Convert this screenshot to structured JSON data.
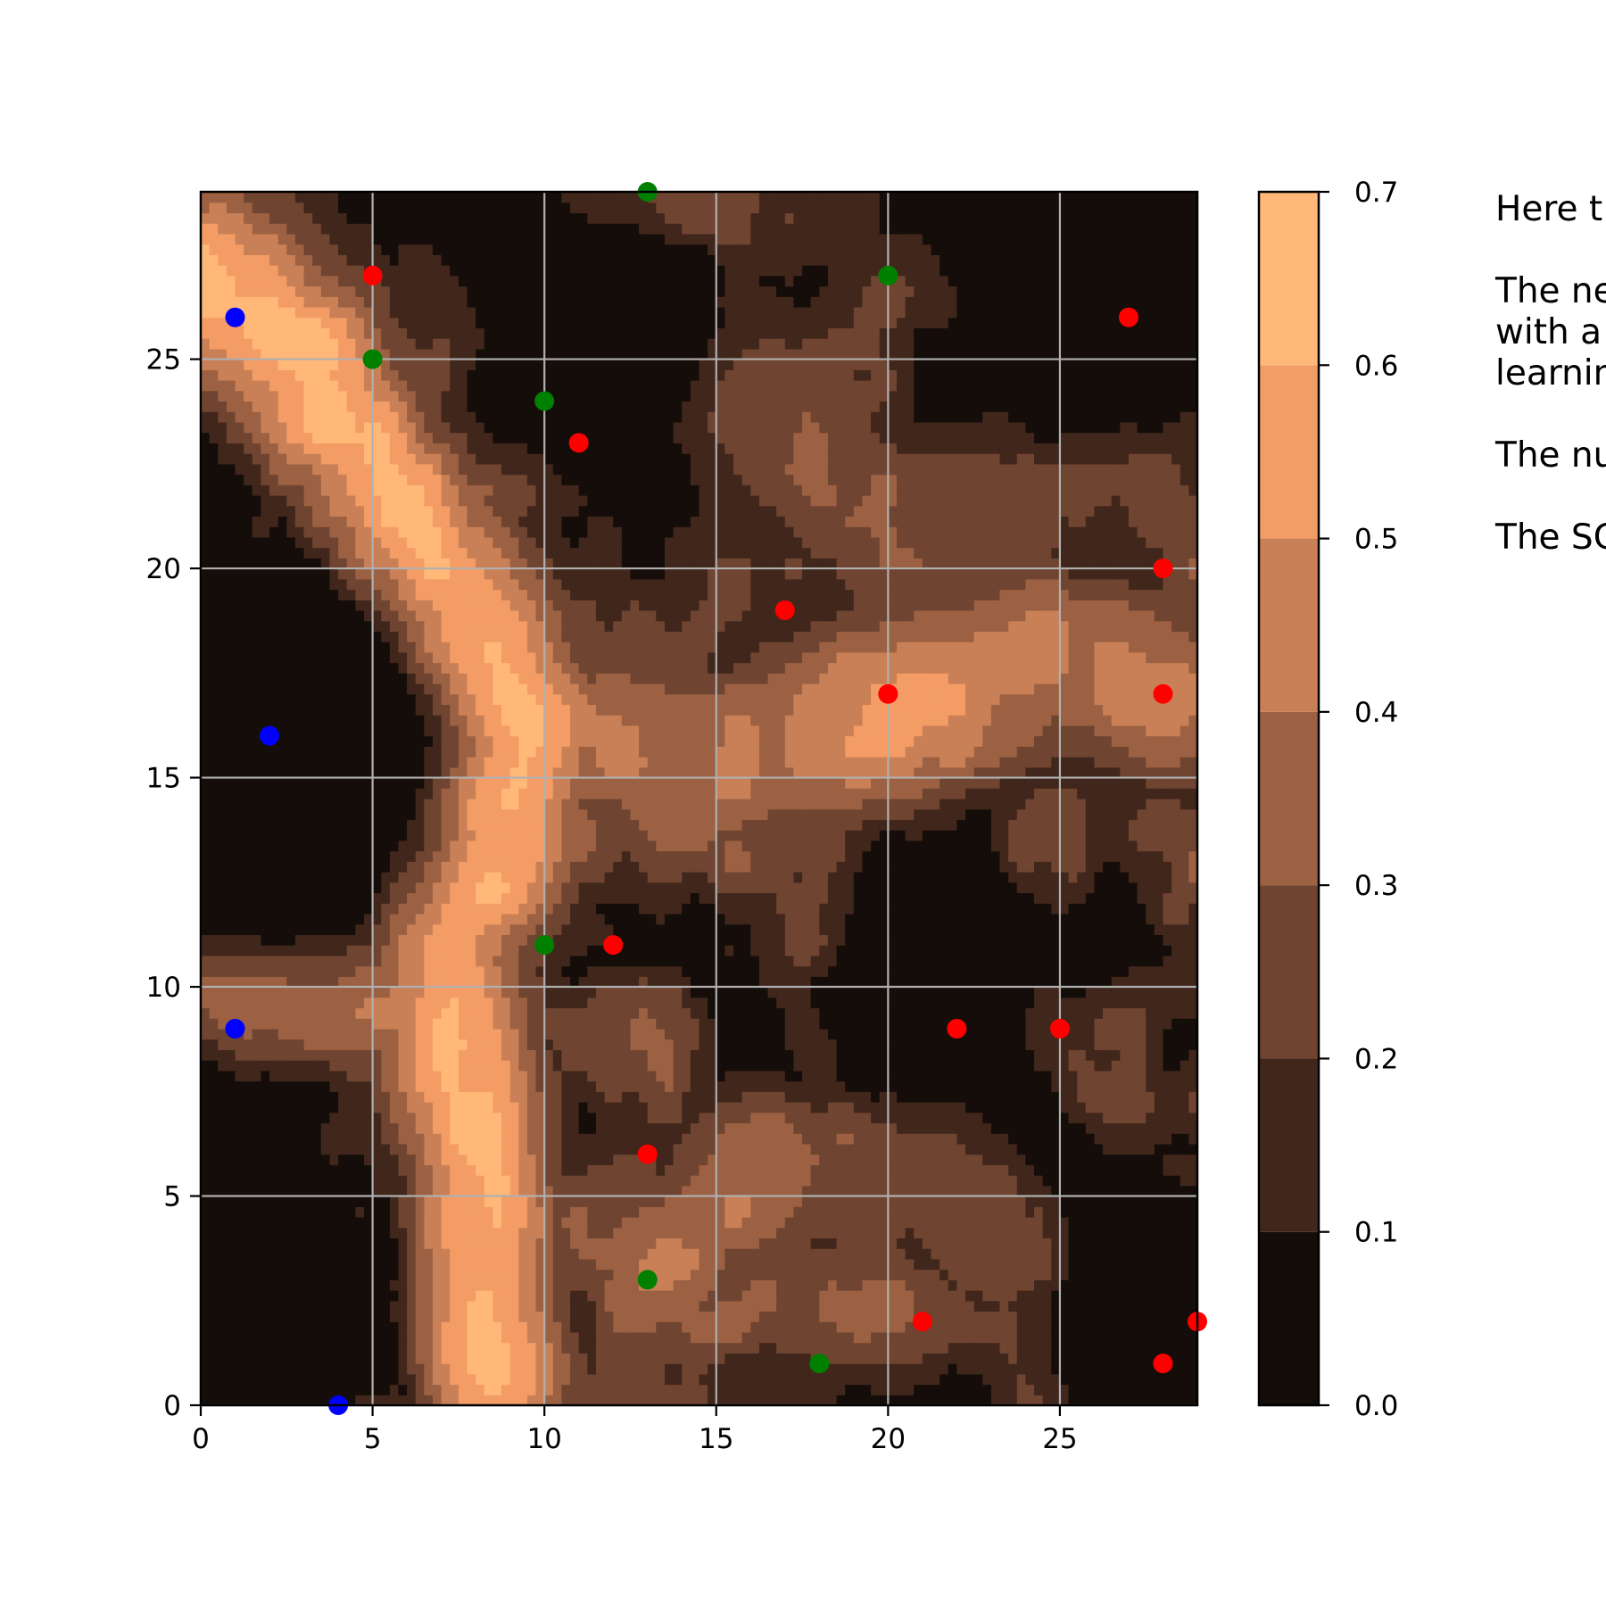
{
  "chart_data": {
    "type": "heatmap",
    "subtype": "filled-contour",
    "xlim": [
      0,
      29
    ],
    "ylim": [
      0,
      29
    ],
    "x_ticks": [
      0,
      5,
      10,
      15,
      20,
      25
    ],
    "y_ticks": [
      0,
      5,
      10,
      15,
      20,
      25
    ],
    "grid": true,
    "colormap": "copper",
    "contour_levels": [
      0.0,
      0.1,
      0.2,
      0.3,
      0.4,
      0.5,
      0.6,
      0.7
    ],
    "level_colors": [
      "#140d09",
      "#41271b",
      "#6f4430",
      "#9c6142",
      "#c98056",
      "#f49c65",
      "#ffb878"
    ],
    "colorbar_ticks": [
      "0.0",
      "0.1",
      "0.2",
      "0.3",
      "0.4",
      "0.5",
      "0.6",
      "0.7"
    ],
    "ridges": [
      {
        "path": [
          [
            0,
            27
          ],
          [
            3,
            25
          ],
          [
            6,
            21
          ],
          [
            8.5,
            18
          ],
          [
            9.5,
            16
          ],
          [
            8.5,
            13
          ],
          [
            7,
            11
          ],
          [
            7.5,
            8
          ],
          [
            8,
            5
          ],
          [
            8,
            2
          ],
          [
            8.5,
            0
          ]
        ],
        "peak": 0.66,
        "width": 1.8
      },
      {
        "path": [
          [
            0,
            10
          ],
          [
            4,
            9.5
          ],
          [
            8,
            10
          ]
        ],
        "peak": 0.5,
        "width": 1.4
      },
      {
        "path": [
          [
            10,
            16
          ],
          [
            14,
            15
          ],
          [
            18,
            16
          ],
          [
            21,
            17
          ],
          [
            25,
            18
          ],
          [
            28,
            17
          ]
        ],
        "peak": 0.42,
        "width": 2.0
      },
      {
        "path": [
          [
            16,
            24
          ],
          [
            20,
            21
          ],
          [
            24,
            22
          ],
          [
            27,
            23
          ],
          [
            29,
            21
          ]
        ],
        "peak": 0.3,
        "width": 2.0
      },
      {
        "path": [
          [
            13,
            3
          ],
          [
            17,
            6
          ],
          [
            21,
            6
          ],
          [
            24,
            4
          ]
        ],
        "peak": 0.38,
        "width": 1.8
      }
    ],
    "blobs": [
      {
        "x": 2,
        "y": 15,
        "peak": -0.4,
        "radius": 3.5
      },
      {
        "x": 2,
        "y": 2,
        "peak": -0.4,
        "radius": 3.2
      },
      {
        "x": 21,
        "y": 10,
        "peak": -0.32,
        "radius": 2.8
      },
      {
        "x": 28,
        "y": 3,
        "peak": -0.35,
        "radius": 2.6
      },
      {
        "x": 26,
        "y": 27,
        "peak": -0.4,
        "radius": 3.0
      },
      {
        "x": 11,
        "y": 26,
        "peak": -0.32,
        "radius": 2.5
      },
      {
        "x": 20.5,
        "y": 16,
        "peak": 0.18,
        "radius": 1.8
      }
    ],
    "scatter_series": [
      {
        "color": "#ff0000",
        "points": [
          [
            5,
            27
          ],
          [
            27,
            26
          ],
          [
            11,
            23
          ],
          [
            28,
            20
          ],
          [
            17,
            19
          ],
          [
            20,
            17
          ],
          [
            28,
            17
          ],
          [
            12,
            11
          ],
          [
            22,
            9
          ],
          [
            25,
            9
          ],
          [
            13,
            6
          ],
          [
            21,
            2
          ],
          [
            29,
            2
          ],
          [
            28,
            1
          ]
        ]
      },
      {
        "color": "#008000",
        "points": [
          [
            13,
            29
          ],
          [
            20,
            27
          ],
          [
            5,
            25
          ],
          [
            10,
            24
          ],
          [
            10,
            11
          ],
          [
            13,
            3
          ],
          [
            18,
            1
          ]
        ]
      },
      {
        "color": "#0000ff",
        "points": [
          [
            1,
            26
          ],
          [
            2,
            16
          ],
          [
            1,
            9
          ],
          [
            4,
            0
          ]
        ]
      }
    ]
  },
  "note_lines": [
    "Here t",
    "The ne",
    "with a",
    "learnin",
    "The nu",
    "The SC"
  ]
}
